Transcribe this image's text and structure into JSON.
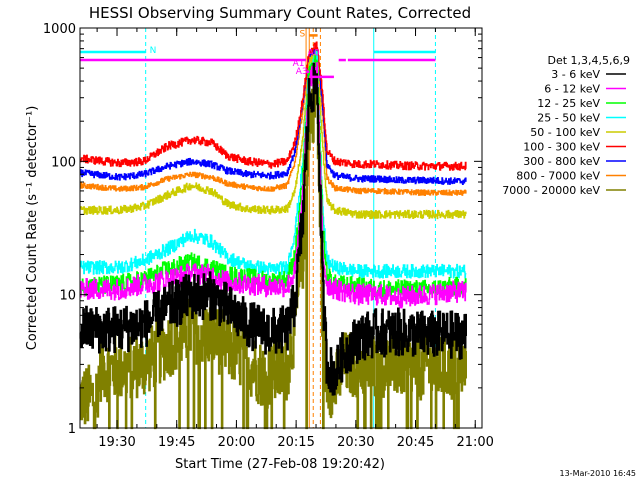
{
  "chart_data": {
    "type": "line",
    "title": "HESSI Observing Summary Count Rates, Corrected",
    "xlabel": "Start Time (27-Feb-08 19:20:42)",
    "ylabel": "Corrected Count Rate (s⁻¹ detector⁻¹)",
    "footer_date": "13-Mar-2010 16:45",
    "y_scale": "log",
    "ylim": [
      1,
      1000
    ],
    "y_ticks": [
      1,
      10,
      100,
      1000
    ],
    "y_tick_labels": [
      "1",
      "10",
      "100",
      "1000"
    ],
    "xlim_minutes": [
      0,
      101
    ],
    "x_ticks": [
      {
        "minute": 9.3,
        "label": "19:30"
      },
      {
        "minute": 24.3,
        "label": "19:45"
      },
      {
        "minute": 39.3,
        "label": "20:00"
      },
      {
        "minute": 54.3,
        "label": "20:15"
      },
      {
        "minute": 69.3,
        "label": "20:30"
      },
      {
        "minute": 84.3,
        "label": "20:45"
      },
      {
        "minute": 99.3,
        "label": "21:00"
      }
    ],
    "legend_title": "Det 1,3,4,5,6,9",
    "legend_position": "right",
    "series": [
      {
        "name": "3 - 6 keV",
        "color": "#000000",
        "points": [
          [
            0,
            5.5
          ],
          [
            10,
            5.5
          ],
          [
            16,
            6
          ],
          [
            22,
            8
          ],
          [
            28,
            9.8
          ],
          [
            33,
            9.8
          ],
          [
            37,
            8
          ],
          [
            42,
            6
          ],
          [
            48,
            5.2
          ],
          [
            52,
            5.5
          ],
          [
            54,
            9
          ],
          [
            56,
            40
          ],
          [
            57.5,
            300
          ],
          [
            59.5,
            400
          ],
          [
            61,
            10
          ],
          [
            62,
            3
          ],
          [
            64,
            2.5
          ],
          [
            66,
            3.5
          ],
          [
            70,
            4.8
          ],
          [
            75,
            5.2
          ],
          [
            80,
            5.2
          ],
          [
            88,
            5
          ],
          [
            93,
            5
          ],
          [
            97,
            5
          ]
        ],
        "noise": 0.18
      },
      {
        "name": "6 - 12 keV",
        "color": "#ff00ff",
        "points": [
          [
            0,
            11
          ],
          [
            10,
            11
          ],
          [
            16,
            12
          ],
          [
            22,
            13
          ],
          [
            28,
            14.5
          ],
          [
            33,
            14
          ],
          [
            37,
            12.5
          ],
          [
            42,
            12
          ],
          [
            48,
            11.5
          ],
          [
            52,
            11.5
          ],
          [
            54,
            15
          ],
          [
            56,
            60
          ],
          [
            57.5,
            400
          ],
          [
            59.5,
            500
          ],
          [
            61,
            20
          ],
          [
            62,
            12
          ],
          [
            64,
            11
          ],
          [
            70,
            10
          ],
          [
            75,
            10
          ],
          [
            80,
            9.5
          ],
          [
            88,
            10
          ],
          [
            93,
            10.5
          ],
          [
            97,
            10.5
          ]
        ],
        "noise": 0.08
      },
      {
        "name": "12 - 25 keV",
        "color": "#00ff00",
        "points": [
          [
            0,
            11.5
          ],
          [
            10,
            12
          ],
          [
            16,
            13
          ],
          [
            22,
            15.5
          ],
          [
            28,
            17.5
          ],
          [
            33,
            16
          ],
          [
            37,
            14
          ],
          [
            42,
            13.5
          ],
          [
            48,
            12.5
          ],
          [
            52,
            13
          ],
          [
            54,
            20
          ],
          [
            56,
            80
          ],
          [
            57.5,
            450
          ],
          [
            59.5,
            550
          ],
          [
            61,
            30
          ],
          [
            62,
            14
          ],
          [
            64,
            12
          ],
          [
            70,
            11.5
          ],
          [
            75,
            11
          ],
          [
            80,
            11
          ],
          [
            88,
            11
          ],
          [
            93,
            11.5
          ],
          [
            97,
            11.5
          ]
        ],
        "noise": 0.07
      },
      {
        "name": "25 - 50 keV",
        "color": "#00ffff",
        "points": [
          [
            0,
            16
          ],
          [
            10,
            16
          ],
          [
            16,
            18
          ],
          [
            22,
            22
          ],
          [
            28,
            28
          ],
          [
            33,
            25
          ],
          [
            37,
            19
          ],
          [
            42,
            16.5
          ],
          [
            48,
            15.5
          ],
          [
            52,
            16
          ],
          [
            54,
            30
          ],
          [
            56,
            100
          ],
          [
            57.5,
            500
          ],
          [
            59.5,
            600
          ],
          [
            61,
            40
          ],
          [
            62,
            18
          ],
          [
            64,
            16
          ],
          [
            70,
            15
          ],
          [
            75,
            15
          ],
          [
            80,
            15
          ],
          [
            88,
            15
          ],
          [
            93,
            15
          ],
          [
            97,
            15
          ]
        ],
        "noise": 0.05
      },
      {
        "name": "50 - 100 keV",
        "color": "#cccc00",
        "points": [
          [
            0,
            43
          ],
          [
            10,
            43
          ],
          [
            16,
            46
          ],
          [
            22,
            56
          ],
          [
            28,
            66
          ],
          [
            33,
            60
          ],
          [
            37,
            48
          ],
          [
            42,
            44
          ],
          [
            48,
            43
          ],
          [
            52,
            44
          ],
          [
            54,
            60
          ],
          [
            56,
            150
          ],
          [
            57.5,
            550
          ],
          [
            59.5,
            650
          ],
          [
            61,
            120
          ],
          [
            62,
            50
          ],
          [
            64,
            43
          ],
          [
            70,
            40
          ],
          [
            75,
            40
          ],
          [
            80,
            40
          ],
          [
            88,
            40
          ],
          [
            93,
            40
          ],
          [
            97,
            40
          ]
        ],
        "noise": 0.03
      },
      {
        "name": "100 - 300 keV",
        "color": "#ff0000",
        "points": [
          [
            0,
            105
          ],
          [
            10,
            97
          ],
          [
            16,
            100
          ],
          [
            22,
            130
          ],
          [
            28,
            145
          ],
          [
            33,
            138
          ],
          [
            37,
            110
          ],
          [
            42,
            100
          ],
          [
            48,
            95
          ],
          [
            52,
            100
          ],
          [
            54,
            140
          ],
          [
            56,
            300
          ],
          [
            57.5,
            650
          ],
          [
            59.5,
            750
          ],
          [
            61,
            300
          ],
          [
            62,
            120
          ],
          [
            64,
            100
          ],
          [
            70,
            95
          ],
          [
            75,
            95
          ],
          [
            80,
            93
          ],
          [
            88,
            92
          ],
          [
            93,
            92
          ],
          [
            97,
            92
          ]
        ],
        "noise": 0.03
      },
      {
        "name": "300 - 800 keV",
        "color": "#0000ff",
        "points": [
          [
            0,
            82
          ],
          [
            10,
            76
          ],
          [
            16,
            80
          ],
          [
            22,
            92
          ],
          [
            28,
            100
          ],
          [
            33,
            95
          ],
          [
            37,
            85
          ],
          [
            42,
            80
          ],
          [
            48,
            78
          ],
          [
            52,
            82
          ],
          [
            54,
            120
          ],
          [
            56,
            280
          ],
          [
            57.5,
            620
          ],
          [
            59.5,
            700
          ],
          [
            61,
            250
          ],
          [
            62,
            95
          ],
          [
            64,
            78
          ],
          [
            70,
            74
          ],
          [
            75,
            74
          ],
          [
            80,
            72
          ],
          [
            88,
            72
          ],
          [
            93,
            71
          ],
          [
            97,
            71
          ]
        ],
        "noise": 0.025
      },
      {
        "name": "800 - 7000 keV",
        "color": "#ff8000",
        "points": [
          [
            0,
            66
          ],
          [
            10,
            62
          ],
          [
            16,
            64
          ],
          [
            22,
            74
          ],
          [
            28,
            80
          ],
          [
            33,
            76
          ],
          [
            37,
            68
          ],
          [
            42,
            64
          ],
          [
            48,
            62
          ],
          [
            52,
            66
          ],
          [
            54,
            100
          ],
          [
            56,
            250
          ],
          [
            57.5,
            600
          ],
          [
            59.5,
            680
          ],
          [
            61,
            220
          ],
          [
            62,
            75
          ],
          [
            64,
            63
          ],
          [
            70,
            60
          ],
          [
            75,
            60
          ],
          [
            80,
            59
          ],
          [
            88,
            58
          ],
          [
            93,
            58
          ],
          [
            97,
            58
          ]
        ],
        "noise": 0.02
      },
      {
        "name": "7000 - 20000 keV",
        "color": "#808000",
        "points": [
          [
            0,
            1.7
          ],
          [
            4,
            1.7
          ],
          [
            5,
            2.8
          ],
          [
            10,
            2.8
          ],
          [
            16,
            3
          ],
          [
            22,
            4.2
          ],
          [
            28,
            5.5
          ],
          [
            33,
            5
          ],
          [
            37,
            4
          ],
          [
            42,
            3.2
          ],
          [
            46,
            2.5
          ],
          [
            48,
            2.5
          ],
          [
            52,
            2.8
          ],
          [
            54,
            6
          ],
          [
            56,
            20
          ],
          [
            57.5,
            200
          ],
          [
            59.5,
            300
          ],
          [
            61,
            5
          ],
          [
            62,
            2.3
          ],
          [
            64,
            2
          ],
          [
            66,
            3
          ],
          [
            70,
            3
          ],
          [
            75,
            3
          ],
          [
            80,
            3
          ],
          [
            88,
            2.8
          ],
          [
            93,
            2.8
          ],
          [
            97,
            2.8
          ]
        ],
        "noise": 0.25,
        "floor": 1
      }
    ],
    "vertical_lines": [
      {
        "minute": 0,
        "color": "#00ffff",
        "style": "solid"
      },
      {
        "minute": 16.5,
        "color": "#00ffff",
        "style": "dashed"
      },
      {
        "minute": 73.8,
        "color": "#00ffff",
        "style": "solid"
      },
      {
        "minute": 89.3,
        "color": "#00ffff",
        "style": "dashed"
      },
      {
        "minute": 56.8,
        "color": "#ff8000",
        "style": "solid"
      },
      {
        "minute": 57.6,
        "color": "#ff8000",
        "style": "solid"
      },
      {
        "minute": 58.6,
        "color": "#ff8000",
        "style": "dashed"
      },
      {
        "minute": 60.4,
        "color": "#ff8000",
        "style": "dashed"
      }
    ],
    "state_bars": [
      {
        "label": "N",
        "color": "#00ffff",
        "segments": [
          [
            0,
            16.5
          ],
          [
            73.8,
            89.3
          ]
        ],
        "y": 660
      },
      {
        "label": "A0",
        "color": "#ff00ff",
        "segments": [
          [
            0,
            56.8
          ],
          [
            65,
            66.8
          ],
          [
            67.3,
            89.3
          ]
        ],
        "y": 575
      },
      {
        "label": "A1",
        "color": "#ff00ff",
        "segments": [
          [
            56.8,
            57.6
          ]
        ],
        "y": 470
      },
      {
        "label": "A3",
        "color": "#ff00ff",
        "segments": [
          [
            57.6,
            63.8
          ]
        ],
        "y": 430
      },
      {
        "label": "S",
        "color": "#ff8000",
        "segments": [
          [
            57.6,
            59.7
          ]
        ],
        "y": 880
      }
    ]
  }
}
